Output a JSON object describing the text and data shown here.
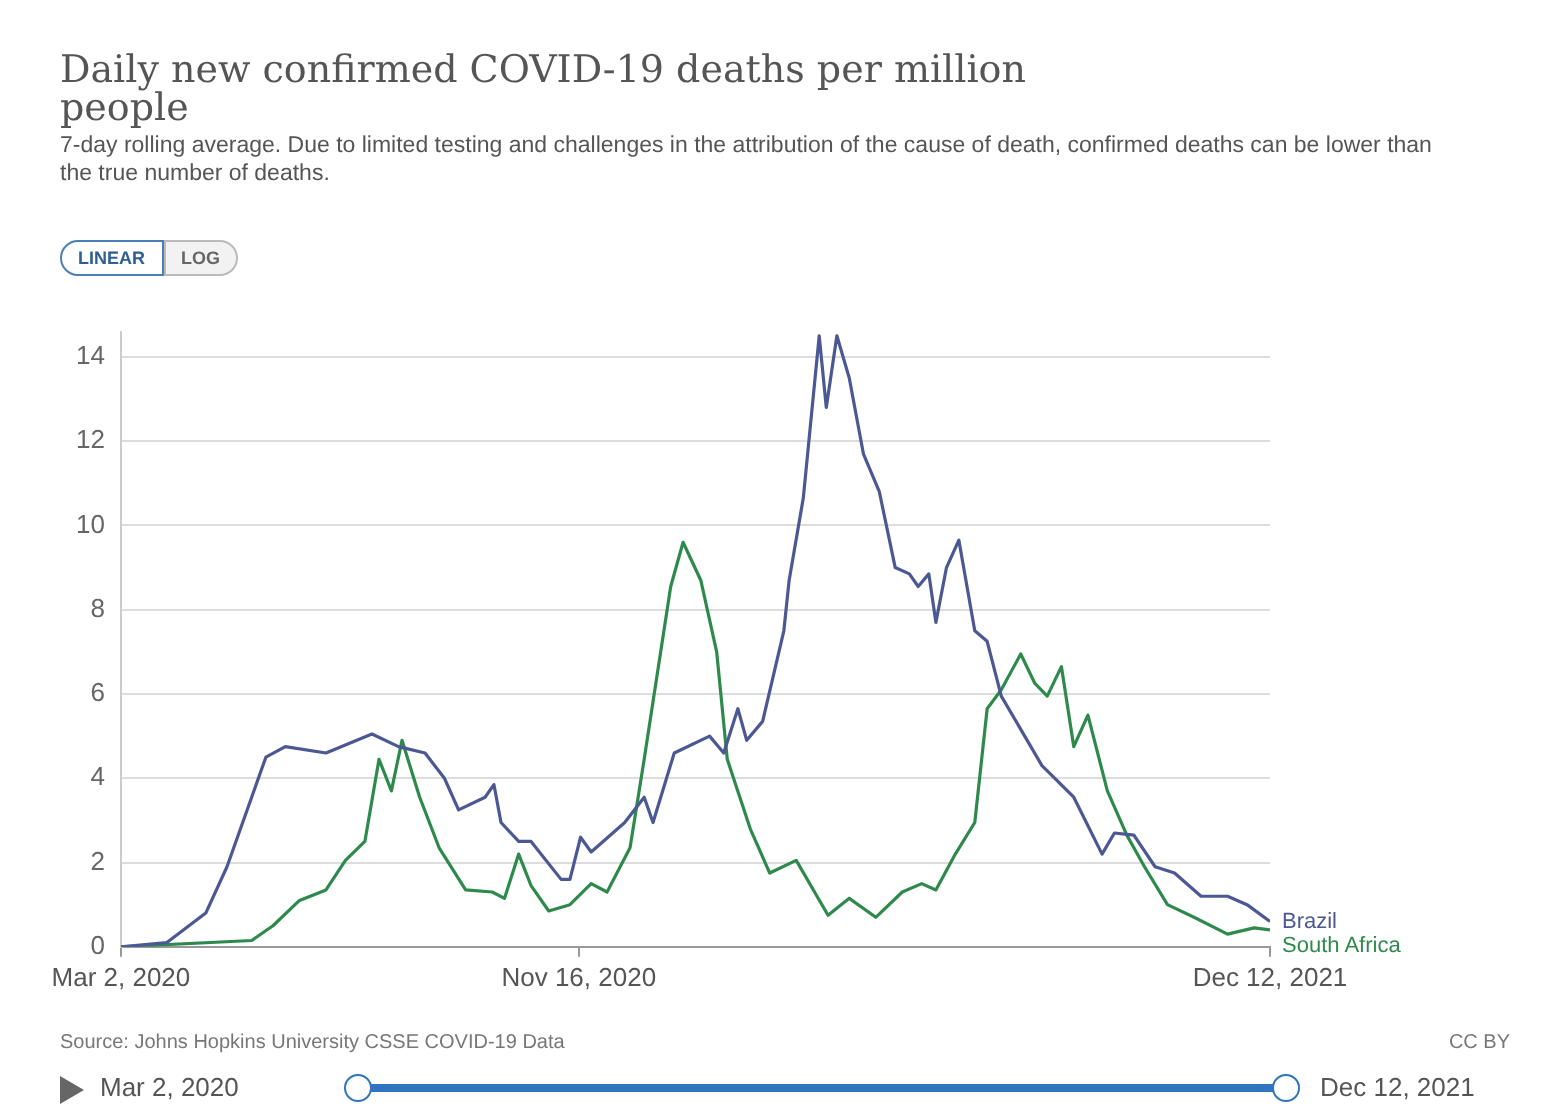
{
  "chart_data": {
    "type": "line",
    "title": "Daily new confirmed COVID-19 deaths per million people",
    "subtitle": "7-day rolling average. Due to limited testing and challenges in the attribution of the cause of death, confirmed deaths can be lower than the true number of deaths.",
    "annotations": [
      "LINEAR",
      "LOG",
      "Source: Johns Hopkins University CSSE COVID-19 Data",
      "CC BY",
      "Mar 2, 2020",
      "Dec 12, 2021"
    ],
    "series": [
      {
        "name": "Brazil",
        "color": "#4b5894",
        "x": [
          "2020-03-02",
          "2020-03-28",
          "2020-04-19",
          "2020-05-01",
          "2020-05-12",
          "2020-05-23",
          "2020-06-03",
          "2020-06-26",
          "2020-07-22",
          "2020-08-06",
          "2020-08-21",
          "2020-09-01",
          "2020-09-09",
          "2020-09-24",
          "2020-09-29",
          "2020-10-03",
          "2020-10-13",
          "2020-10-20",
          "2020-11-06",
          "2020-11-11",
          "2020-11-17",
          "2020-11-23",
          "2020-12-12",
          "2020-12-23",
          "2020-12-28",
          "2021-01-09",
          "2021-01-29",
          "2021-02-06",
          "2021-02-14",
          "2021-02-19",
          "2021-02-28",
          "2021-03-12",
          "2021-03-15",
          "2021-03-23",
          "2021-04-01",
          "2021-04-05",
          "2021-04-11",
          "2021-04-18",
          "2021-04-26",
          "2021-05-05",
          "2021-05-14",
          "2021-05-22",
          "2021-05-27",
          "2021-06-02",
          "2021-06-06",
          "2021-06-12",
          "2021-06-19",
          "2021-06-28",
          "2021-07-05",
          "2021-07-13",
          "2021-08-05",
          "2021-08-23",
          "2021-09-08",
          "2021-09-15",
          "2021-09-26",
          "2021-10-08",
          "2021-10-19",
          "2021-11-03",
          "2021-11-18",
          "2021-11-29",
          "2021-12-12"
        ],
        "values": [
          0,
          0.1,
          0.8,
          1.9,
          3.2,
          4.5,
          4.75,
          4.6,
          5.05,
          4.75,
          4.6,
          4.0,
          3.25,
          3.55,
          3.85,
          2.95,
          2.5,
          2.5,
          1.6,
          1.6,
          2.6,
          2.25,
          2.95,
          3.55,
          2.95,
          4.6,
          5.0,
          4.6,
          5.65,
          4.9,
          5.35,
          7.5,
          8.7,
          10.65,
          14.5,
          12.8,
          14.5,
          13.5,
          11.7,
          10.8,
          9.0,
          8.85,
          8.55,
          8.85,
          7.7,
          9.0,
          9.65,
          7.5,
          7.25,
          5.95,
          4.3,
          3.55,
          2.2,
          2.7,
          2.65,
          1.9,
          1.75,
          1.2,
          1.2,
          1.0,
          0.6
        ]
      },
      {
        "name": "South Africa",
        "color": "#2e8a4c",
        "x": [
          "2020-03-02",
          "2020-05-15",
          "2020-05-27",
          "2020-06-11",
          "2020-06-26",
          "2020-07-07",
          "2020-07-18",
          "2020-07-26",
          "2020-08-02",
          "2020-08-08",
          "2020-08-18",
          "2020-08-29",
          "2020-09-13",
          "2020-09-28",
          "2020-10-05",
          "2020-10-13",
          "2020-10-20",
          "2020-10-30",
          "2020-11-11",
          "2020-11-23",
          "2020-12-02",
          "2020-12-15",
          "2020-12-23",
          "2021-01-07",
          "2021-01-14",
          "2021-01-24",
          "2021-02-02",
          "2021-02-08",
          "2021-02-21",
          "2021-03-04",
          "2021-03-19",
          "2021-04-06",
          "2021-04-18",
          "2021-05-03",
          "2021-05-18",
          "2021-05-29",
          "2021-06-06",
          "2021-06-17",
          "2021-06-28",
          "2021-07-05",
          "2021-07-13",
          "2021-07-24",
          "2021-08-01",
          "2021-08-08",
          "2021-08-16",
          "2021-08-23",
          "2021-08-31",
          "2021-09-11",
          "2021-09-22",
          "2021-10-02",
          "2021-10-15",
          "2021-10-30",
          "2021-11-18",
          "2021-12-03",
          "2021-12-12"
        ],
        "values": [
          0,
          0.15,
          0.5,
          1.1,
          1.35,
          2.05,
          2.5,
          4.45,
          3.7,
          4.9,
          3.55,
          2.35,
          1.35,
          1.3,
          1.15,
          2.2,
          1.45,
          0.85,
          1.0,
          1.5,
          1.3,
          2.35,
          4.45,
          8.55,
          9.6,
          8.7,
          7.0,
          4.45,
          2.8,
          1.75,
          2.05,
          0.75,
          1.15,
          0.7,
          1.3,
          1.5,
          1.35,
          2.2,
          2.95,
          5.65,
          6.1,
          6.95,
          6.25,
          5.95,
          6.65,
          4.75,
          5.5,
          3.7,
          2.65,
          1.9,
          1.0,
          0.7,
          0.3,
          0.45,
          0.4
        ]
      }
    ],
    "xlim": [
      "2020-03-02",
      "2021-12-12"
    ],
    "xticks": [
      {
        "value": "2020-03-02",
        "label": "Mar 2, 2020"
      },
      {
        "value": "2020-11-16",
        "label": "Nov 16, 2020"
      },
      {
        "value": "2021-12-12",
        "label": "Dec 12, 2021"
      }
    ],
    "ylim": [
      0,
      14.6
    ],
    "yticks": [
      0,
      2,
      4,
      6,
      8,
      10,
      12,
      14
    ],
    "grid": "y",
    "legend": "right",
    "marker": "none",
    "line_style": "solid"
  }
}
